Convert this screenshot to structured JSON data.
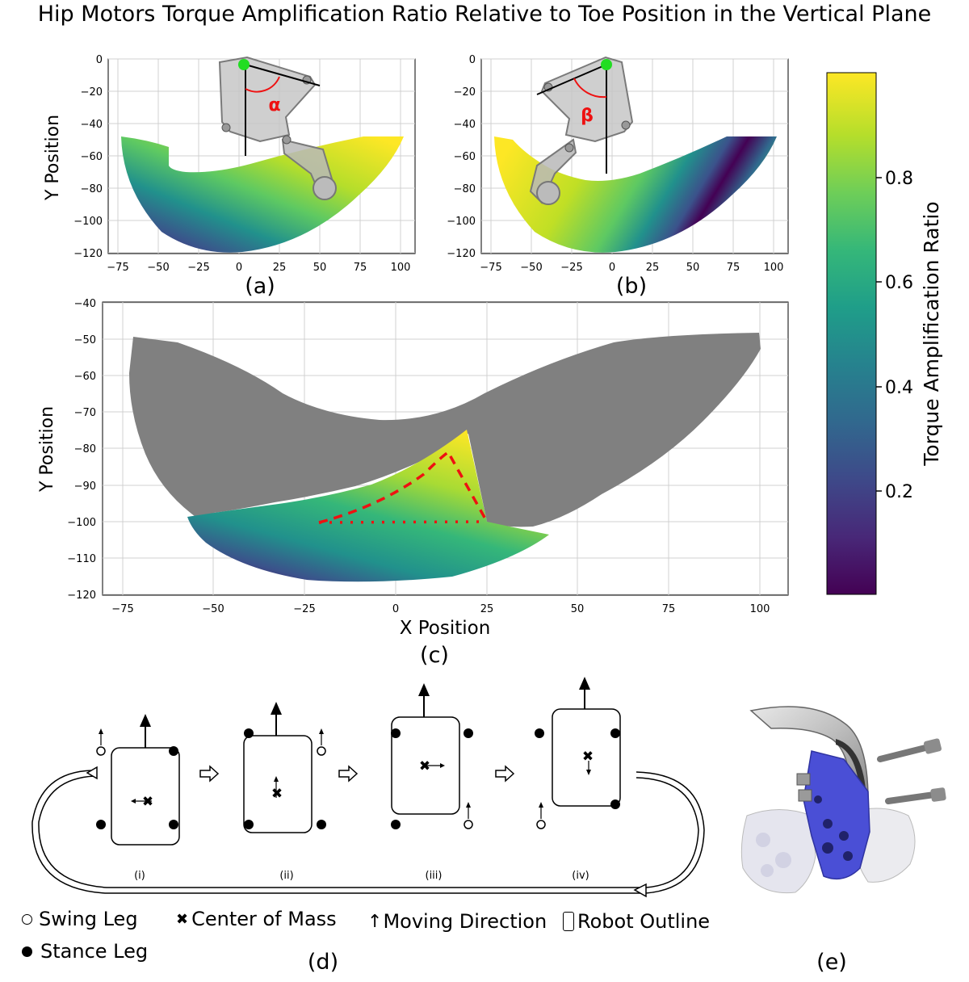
{
  "title": "Hip Motors Torque Amplification Ratio Relative to Toe Position in the Vertical Plane",
  "colors": {
    "viridis": [
      "#440154",
      "#482878",
      "#3e4989",
      "#31688e",
      "#26828e",
      "#1f9e89",
      "#35b779",
      "#6ece58",
      "#b5de2b",
      "#fde725"
    ],
    "gray_region": "#808080",
    "marker_green": "#22dd22",
    "annotation_red": "#ee1111",
    "leg_mount_blue": "#4a4fd6"
  },
  "panels": {
    "a": {
      "caption": "(a)",
      "angle_label": "α",
      "ylabel": "Y Position",
      "x_ticks": [
        "−75",
        "−50",
        "−25",
        "0",
        "25",
        "50",
        "75",
        "100"
      ],
      "y_ticks": [
        "0",
        "−20",
        "−40",
        "−60",
        "−80",
        "−100",
        "−120"
      ]
    },
    "b": {
      "caption": "(b)",
      "angle_label": "β",
      "x_ticks": [
        "−75",
        "−50",
        "−25",
        "0",
        "25",
        "50",
        "75",
        "100"
      ],
      "y_ticks": [
        "0",
        "−20",
        "−40",
        "−60",
        "−80",
        "−100",
        "−120"
      ]
    },
    "c": {
      "caption": "(c)",
      "xlabel": "X Position",
      "ylabel": "Y Position",
      "x_ticks": [
        "−75",
        "−50",
        "−25",
        "0",
        "25",
        "50",
        "75",
        "100"
      ],
      "y_ticks": [
        "−40",
        "−50",
        "−60",
        "−70",
        "−80",
        "−90",
        "−100",
        "−110",
        "−120"
      ]
    },
    "d": {
      "caption": "(d)",
      "phases": [
        "(i)",
        "(ii)",
        "(iii)",
        "(iv)"
      ],
      "legend": {
        "swing": "Swing Leg",
        "stance": "Stance Leg",
        "com": "Center of Mass",
        "direction": "Moving Direction",
        "outline": "Robot Outline"
      }
    },
    "e": {
      "caption": "(e)"
    }
  },
  "colorbar": {
    "label": "Torque Amplification Ratio",
    "ticks": [
      "0.8",
      "0.6",
      "0.4",
      "0.2"
    ]
  },
  "chart_data": [
    {
      "type": "heatmap",
      "panel": "a",
      "title": "",
      "xlabel": "",
      "ylabel": "Y Position",
      "xlim": [
        -80,
        105
      ],
      "ylim": [
        -120,
        0
      ],
      "workspace_outer": [
        [
          -73,
          -48
        ],
        [
          -68,
          -75
        ],
        [
          -58,
          -100
        ],
        [
          -45,
          -113
        ],
        [
          -25,
          -119
        ],
        [
          0,
          -120
        ],
        [
          25,
          -118
        ],
        [
          50,
          -110
        ],
        [
          75,
          -92
        ],
        [
          92,
          -72
        ],
        [
          100,
          -48
        ]
      ],
      "workspace_inner": [
        [
          100,
          -48
        ],
        [
          75,
          -48
        ],
        [
          50,
          -52
        ],
        [
          25,
          -60
        ],
        [
          0,
          -66
        ],
        [
          -25,
          -68
        ],
        [
          -44,
          -66
        ],
        [
          -44,
          -52
        ],
        [
          -62,
          -48
        ],
        [
          -73,
          -48
        ]
      ],
      "gradient": "ratio increases from lower-left (~0.0) to upper-right (~1.0)"
    },
    {
      "type": "heatmap",
      "panel": "b",
      "title": "",
      "xlabel": "",
      "ylabel": "",
      "xlim": [
        -80,
        105
      ],
      "ylim": [
        -120,
        0
      ],
      "workspace_outer": [
        [
          -73,
          -48
        ],
        [
          -68,
          -75
        ],
        [
          -58,
          -100
        ],
        [
          -45,
          -113
        ],
        [
          -25,
          -119
        ],
        [
          0,
          -120
        ],
        [
          25,
          -118
        ],
        [
          50,
          -110
        ],
        [
          75,
          -92
        ],
        [
          92,
          -72
        ],
        [
          100,
          -48
        ]
      ],
      "workspace_inner": [
        [
          100,
          -48
        ],
        [
          72,
          -48
        ],
        [
          50,
          -58
        ],
        [
          25,
          -68
        ],
        [
          0,
          -75
        ],
        [
          -25,
          -72
        ],
        [
          -50,
          -62
        ],
        [
          -62,
          -50
        ],
        [
          -73,
          -48
        ]
      ],
      "gradient": "ratio high (~1.0) at upper-left, lowest along a band near x≈65, rising toward x≈100"
    },
    {
      "type": "heatmap",
      "panel": "c",
      "title": "",
      "xlabel": "X Position",
      "ylabel": "Y Position",
      "xlim": [
        -75,
        102
      ],
      "ylim": [
        -120,
        -40
      ],
      "gray_region_outer": [
        [
          -72,
          -50
        ],
        [
          -65,
          -52
        ],
        [
          -40,
          -55
        ],
        [
          -20,
          -63
        ],
        [
          0,
          -70
        ],
        [
          20,
          -72
        ],
        [
          40,
          -64
        ],
        [
          60,
          -55
        ],
        [
          80,
          -50
        ],
        [
          100,
          -50
        ],
        [
          98,
          -60
        ],
        [
          85,
          -78
        ],
        [
          70,
          -90
        ],
        [
          55,
          -100
        ],
        [
          45,
          -104
        ],
        [
          35,
          -103
        ],
        [
          25,
          -100
        ],
        [
          20,
          -90
        ],
        [
          18,
          -83
        ],
        [
          12,
          -86
        ],
        [
          0,
          -90
        ],
        [
          -15,
          -95
        ],
        [
          -35,
          -100
        ],
        [
          -50,
          -103
        ],
        [
          -60,
          -100
        ],
        [
          -68,
          -85
        ],
        [
          -72,
          -68
        ]
      ],
      "colored_region": [
        [
          -57,
          -99
        ],
        [
          -50,
          -105
        ],
        [
          -40,
          -110
        ],
        [
          -25,
          -115
        ],
        [
          0,
          -116
        ],
        [
          20,
          -114
        ],
        [
          35,
          -109
        ],
        [
          42,
          -104
        ],
        [
          25,
          -100
        ],
        [
          20,
          -90
        ],
        [
          19,
          -74
        ],
        [
          10,
          -86
        ],
        [
          -5,
          -93
        ],
        [
          -20,
          -97
        ],
        [
          -40,
          -100
        ]
      ],
      "dashed_line": [
        [
          -21,
          -100
        ],
        [
          0,
          -91
        ],
        [
          14,
          -81
        ],
        [
          25,
          -100
        ]
      ],
      "dotted_line": [
        [
          -21,
          -100
        ],
        [
          25,
          -100
        ]
      ]
    }
  ]
}
